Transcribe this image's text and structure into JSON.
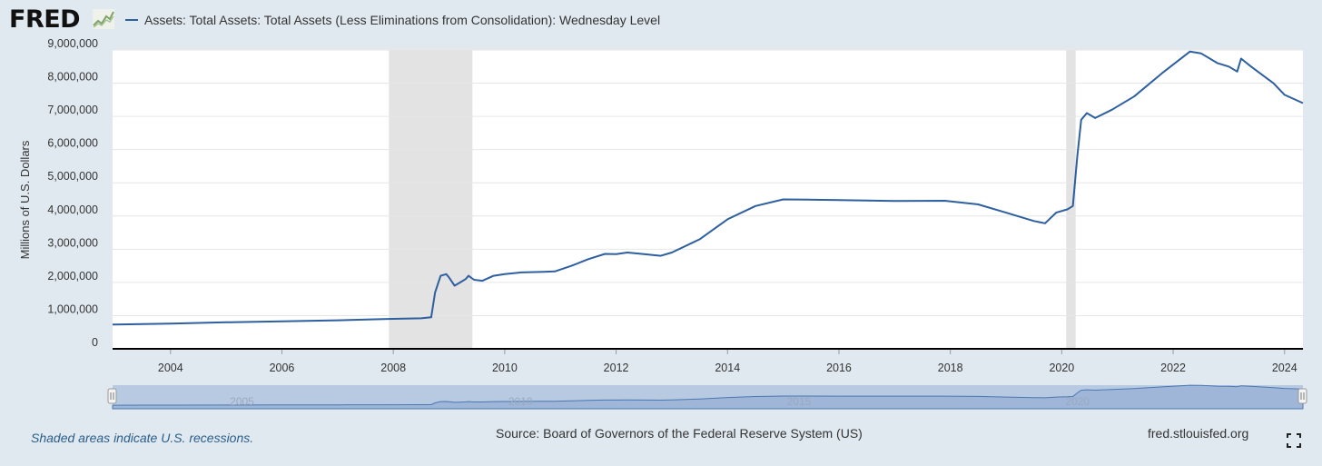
{
  "header": {
    "logo_text": "FRED",
    "logo_icon": "line-chart-icon",
    "legend_label": "Assets: Total Assets: Total Assets (Less Eliminations from Consolidation): Wednesday Level"
  },
  "colors": {
    "series": "#2e5f9e",
    "recession": "#e3e3e3",
    "background": "#e1e9f0",
    "plot": "#ffffff",
    "navigator_fill": "#9fb6d8",
    "navigator_line": "#4a78b0"
  },
  "chart_data": {
    "type": "line",
    "title": "Assets: Total Assets: Total Assets (Less Eliminations from Consolidation): Wednesday Level",
    "ylabel": "Millions of U.S. Dollars",
    "xlabel": "",
    "xlim": [
      2002.96,
      2024.33
    ],
    "ylim": [
      0,
      9000000
    ],
    "yticks": [
      0,
      1000000,
      2000000,
      3000000,
      4000000,
      5000000,
      6000000,
      7000000,
      8000000,
      9000000
    ],
    "ytick_labels": [
      "0",
      "1,000,000",
      "2,000,000",
      "3,000,000",
      "4,000,000",
      "5,000,000",
      "6,000,000",
      "7,000,000",
      "8,000,000",
      "9,000,000"
    ],
    "xticks": [
      2004,
      2006,
      2008,
      2010,
      2012,
      2014,
      2016,
      2018,
      2020,
      2022,
      2024
    ],
    "xtick_labels": [
      "2004",
      "2006",
      "2008",
      "2010",
      "2012",
      "2014",
      "2016",
      "2018",
      "2020",
      "2022",
      "2024"
    ],
    "recessions": [
      [
        2007.92,
        2009.42
      ],
      [
        2020.08,
        2020.25
      ]
    ],
    "series": [
      {
        "name": "Assets: Total Assets: Total Assets (Less Eliminations from Consolidation): Wednesday Level",
        "x": [
          2002.96,
          2003.5,
          2004,
          2005,
          2006,
          2007,
          2007.9,
          2008.5,
          2008.68,
          2008.75,
          2008.85,
          2008.95,
          2009.0,
          2009.1,
          2009.2,
          2009.3,
          2009.35,
          2009.45,
          2009.6,
          2009.8,
          2010.0,
          2010.3,
          2010.7,
          2010.9,
          2011.2,
          2011.5,
          2011.8,
          2012.0,
          2012.2,
          2012.5,
          2012.8,
          2013.0,
          2013.5,
          2014.0,
          2014.5,
          2015.0,
          2016.0,
          2017.0,
          2017.9,
          2018.5,
          2019.0,
          2019.5,
          2019.7,
          2019.9,
          2020.1,
          2020.2,
          2020.28,
          2020.35,
          2020.45,
          2020.6,
          2020.9,
          2021.3,
          2021.8,
          2022.3,
          2022.5,
          2022.8,
          2023.0,
          2023.15,
          2023.22,
          2023.4,
          2023.8,
          2024.0,
          2024.33
        ],
        "values": [
          730000,
          745000,
          760000,
          800000,
          830000,
          860000,
          900000,
          920000,
          950000,
          1700000,
          2200000,
          2250000,
          2150000,
          1900000,
          2000000,
          2100000,
          2200000,
          2080000,
          2050000,
          2200000,
          2250000,
          2300000,
          2320000,
          2330000,
          2500000,
          2700000,
          2860000,
          2850000,
          2900000,
          2850000,
          2800000,
          2900000,
          3300000,
          3900000,
          4300000,
          4500000,
          4480000,
          4450000,
          4460000,
          4350000,
          4100000,
          3850000,
          3780000,
          4100000,
          4200000,
          4300000,
          5800000,
          6900000,
          7100000,
          6950000,
          7200000,
          7600000,
          8300000,
          8950000,
          8900000,
          8600000,
          8500000,
          8350000,
          8740000,
          8500000,
          8000000,
          7650000,
          7400000
        ]
      }
    ],
    "navigator": {
      "tick_labels": [
        "2005",
        "2010",
        "2015",
        "2020"
      ],
      "tick_values": [
        2005,
        2010,
        2015,
        2020
      ]
    }
  },
  "footer": {
    "recession_note": "Shaded areas indicate U.S. recessions.",
    "source": "Source: Board of Governors of the Federal Reserve System (US)",
    "site": "fred.stlouisfed.org",
    "fullscreen_icon": "fullscreen-icon"
  }
}
